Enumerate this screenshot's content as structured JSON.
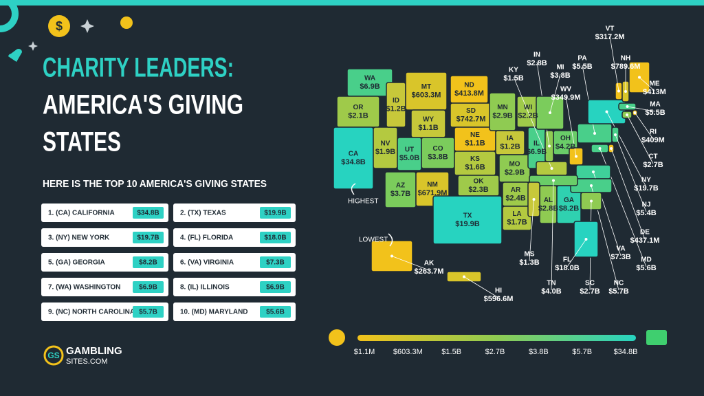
{
  "header": {
    "title_line1": "CHARITY LEADERS:",
    "title_line2": "AMERICA'S GIVING",
    "title_line3": "STATES",
    "subtitle": "HERE IS THE TOP 10 AMERICA'S GIVING STATES"
  },
  "top_states": [
    {
      "label": "1. (CA) CALIFORNIA",
      "value": "$34.8B"
    },
    {
      "label": "2. (TX) TEXAS",
      "value": "$19.9B"
    },
    {
      "label": "3. (NY) NEW YORK",
      "value": "$19.7B"
    },
    {
      "label": "4. (FL) FLORIDA",
      "value": "$18.0B"
    },
    {
      "label": "5. (GA) GEORGIA",
      "value": "$8.2B"
    },
    {
      "label": "6. (VA) VIRGINIA",
      "value": "$7.3B"
    },
    {
      "label": "7. (WA) WASHINGTON",
      "value": "$6.9B"
    },
    {
      "label": "8. (IL) ILLINOIS",
      "value": "$6.9B"
    },
    {
      "label": "9. (NC) NORTH CAROLINA",
      "value": "$5.7B"
    },
    {
      "label": "10. (MD) MARYLAND",
      "value": "$5.6B"
    }
  ],
  "map": {
    "states": [
      {
        "code": "WA",
        "value": "$6.9B",
        "color": "#49cf8a"
      },
      {
        "code": "OR",
        "value": "$2.1B",
        "color": "#9fca4a"
      },
      {
        "code": "CA",
        "value": "$34.8B",
        "color": "#27d3c0"
      },
      {
        "code": "NV",
        "value": "$1.9B",
        "color": "#b4c940"
      },
      {
        "code": "ID",
        "value": "$1.2B",
        "color": "#c7c83a"
      },
      {
        "code": "MT",
        "value": "$603.3M",
        "color": "#d9c52a"
      },
      {
        "code": "WY",
        "value": "$1.1B",
        "color": "#c7c83a"
      },
      {
        "code": "UT",
        "value": "$5.0B",
        "color": "#49cf8a"
      },
      {
        "code": "AZ",
        "value": "$3.7B",
        "color": "#7bcc5c"
      },
      {
        "code": "CO",
        "value": "$3.8B",
        "color": "#7bcc5c"
      },
      {
        "code": "NM",
        "value": "$671.9M",
        "color": "#d9c52a"
      },
      {
        "code": "ND",
        "value": "$413.8M",
        "color": "#f2c21b"
      },
      {
        "code": "SD",
        "value": "$742.7M",
        "color": "#d9c52a"
      },
      {
        "code": "NE",
        "value": "$1.1B",
        "color": "#f2c21b"
      },
      {
        "code": "KS",
        "value": "$1.6B",
        "color": "#b4c940"
      },
      {
        "code": "OK",
        "value": "$2.3B",
        "color": "#9fca4a"
      },
      {
        "code": "TX",
        "value": "$19.9B",
        "color": "#27d3c0"
      },
      {
        "code": "MN",
        "value": "$2.9B",
        "color": "#8fcb52"
      },
      {
        "code": "IA",
        "value": "$1.2B",
        "color": "#c7c83a"
      },
      {
        "code": "MO",
        "value": "$2.9B",
        "color": "#8fcb52"
      },
      {
        "code": "AR",
        "value": "$2.4B",
        "color": "#9fca4a"
      },
      {
        "code": "LA",
        "value": "$1.7B",
        "color": "#b4c940"
      },
      {
        "code": "WI",
        "value": "$2.2B",
        "color": "#9fca4a"
      },
      {
        "code": "IL",
        "value": "$6.9B",
        "color": "#49cf8a"
      },
      {
        "code": "AL",
        "value": "$2.8B",
        "color": "#8fcb52"
      },
      {
        "code": "GA",
        "value": "$8.2B",
        "color": "#2fd1b0"
      },
      {
        "code": "OH",
        "value": "$4.2B",
        "color": "#6acd68"
      },
      {
        "code": "KY",
        "value": "$1.5B",
        "color": "#b4c940"
      },
      {
        "code": "IN",
        "value": "$2.8B",
        "color": "#8fcb52"
      },
      {
        "code": "MI",
        "value": "$3.8B",
        "color": "#7bcc5c"
      },
      {
        "code": "WV",
        "value": "$349.9M",
        "color": "#f2c21b"
      },
      {
        "code": "PA",
        "value": "$5.5B",
        "color": "#49cf8a"
      },
      {
        "code": "NY",
        "value": "$19.7B",
        "color": "#27d3c0"
      },
      {
        "code": "VT",
        "value": "$317.2M",
        "color": "#f2c21b"
      },
      {
        "code": "NH",
        "value": "$789.6M",
        "color": "#d9c52a"
      },
      {
        "code": "ME",
        "value": "$413M",
        "color": "#f2c21b"
      },
      {
        "code": "MA",
        "value": "$5.5B",
        "color": "#49cf8a"
      },
      {
        "code": "RI",
        "value": "$409M",
        "color": "#f2c21b"
      },
      {
        "code": "CT",
        "value": "$2.7B",
        "color": "#8fcb52"
      },
      {
        "code": "NJ",
        "value": "$5.4B",
        "color": "#49cf8a"
      },
      {
        "code": "DE",
        "value": "$437.1M",
        "color": "#f2c21b"
      },
      {
        "code": "MD",
        "value": "$5.6B",
        "color": "#49cf8a"
      },
      {
        "code": "VA",
        "value": "$7.3B",
        "color": "#3fd09a"
      },
      {
        "code": "NC",
        "value": "$5.7B",
        "color": "#49cf8a"
      },
      {
        "code": "SC",
        "value": "$2.7B",
        "color": "#8fcb52"
      },
      {
        "code": "TN",
        "value": "$4.0B",
        "color": "#6acd68"
      },
      {
        "code": "MS",
        "value": "$1.3B",
        "color": "#c7c83a"
      },
      {
        "code": "FL",
        "value": "$18.0B",
        "color": "#27d3c0"
      },
      {
        "code": "AK",
        "value": "$263.7M",
        "color": "#f2c21b"
      },
      {
        "code": "HI",
        "value": "$596.6M",
        "color": "#d9c52a"
      }
    ],
    "highest_label": "HIGHEST",
    "lowest_label": "LOWEST",
    "legend": {
      "ticks": [
        "$1.1M",
        "$603.3M",
        "$1.5B",
        "$2.7B",
        "$3.8B",
        "$5.7B",
        "$34.8B"
      ]
    }
  },
  "logo": {
    "mark": "GS",
    "name": "GAMBLING",
    "domain": "SITES.COM"
  }
}
